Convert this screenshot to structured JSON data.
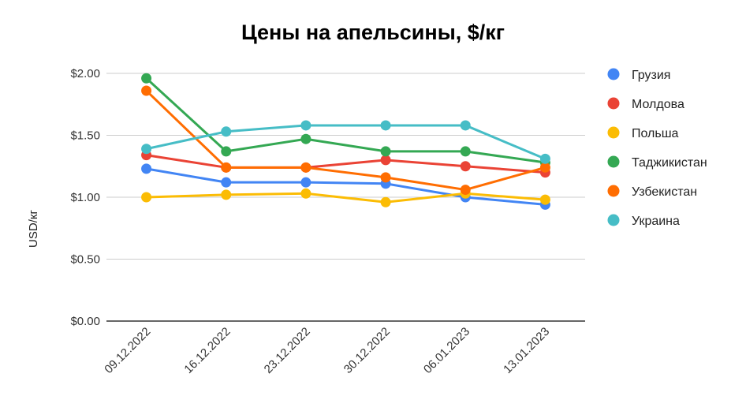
{
  "chart_data": {
    "type": "line",
    "title": "Цены на апельсины, $/кг",
    "ylabel": "USD/кг",
    "xlabel": "",
    "categories": [
      "09.12.2022",
      "16.12.2022",
      "23.12.2022",
      "30.12.2022",
      "06.01.2023",
      "13.01.2023"
    ],
    "ylim": [
      0,
      2
    ],
    "yticks": [
      0,
      0.5,
      1,
      1.5,
      2
    ],
    "ytick_labels": [
      "$0.00",
      "$0.50",
      "$1.00",
      "$1.50",
      "$2.00"
    ],
    "grid": true,
    "legend_position": "right",
    "series": [
      {
        "name": "Грузия",
        "color": "#4285f4",
        "values": [
          1.23,
          1.12,
          1.12,
          1.11,
          1.0,
          0.94
        ]
      },
      {
        "name": "Молдова",
        "color": "#ea4335",
        "values": [
          1.34,
          1.24,
          1.24,
          1.3,
          1.25,
          1.2
        ]
      },
      {
        "name": "Польша",
        "color": "#fbbc04",
        "values": [
          1.0,
          1.02,
          1.03,
          0.96,
          1.03,
          0.98
        ]
      },
      {
        "name": "Таджикистан",
        "color": "#34a853",
        "values": [
          1.96,
          1.37,
          1.47,
          1.37,
          1.37,
          1.28
        ]
      },
      {
        "name": "Узбекистан",
        "color": "#ff6d01",
        "values": [
          1.86,
          1.24,
          1.24,
          1.16,
          1.06,
          1.24
        ]
      },
      {
        "name": "Украина",
        "color": "#46bdc6",
        "values": [
          1.39,
          1.53,
          1.58,
          1.58,
          1.58,
          1.31
        ]
      }
    ]
  }
}
